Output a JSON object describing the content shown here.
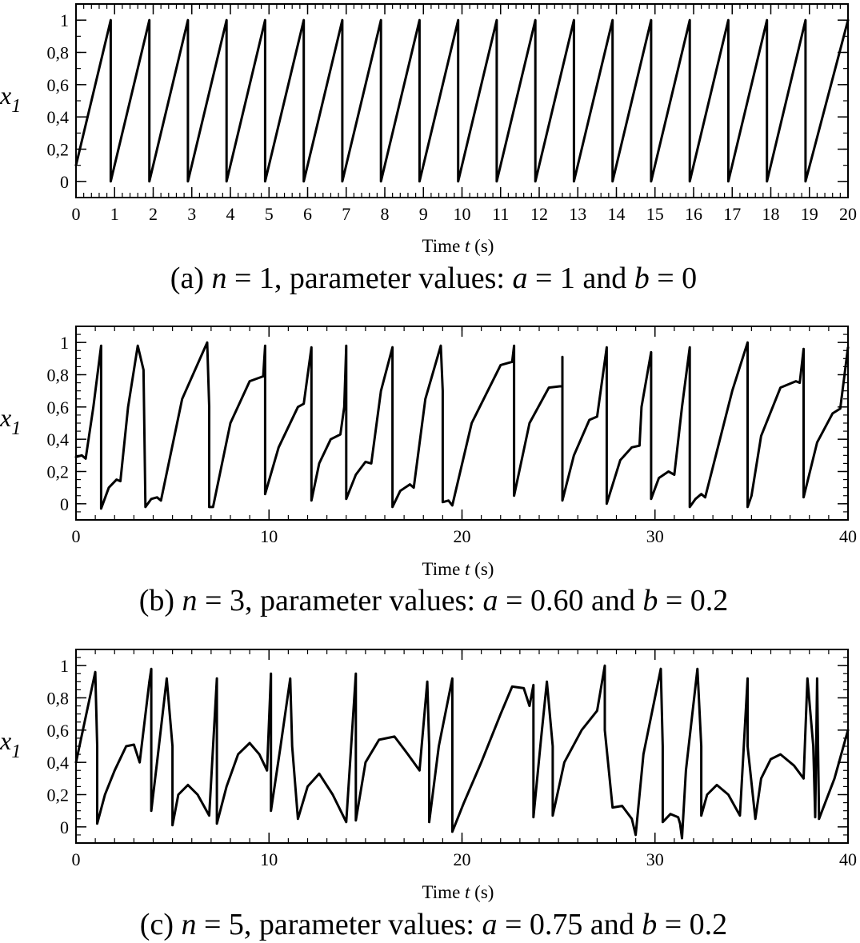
{
  "chart_data": [
    {
      "type": "line",
      "panel": "a",
      "caption": {
        "prefix": "(a) ",
        "n_var": "n",
        "n_eq": " = 1, parameter values: ",
        "a_var": "a",
        "a_eq": " = 1 and ",
        "b_var": "b",
        "b_eq": " = 0"
      },
      "xlabel": {
        "word": "Time ",
        "var": "t",
        "unit": "   (s)"
      },
      "ylabel": {
        "main": "x",
        "sub": "1"
      },
      "xlim": [
        0,
        20
      ],
      "ylim": [
        -0.1,
        1.1
      ],
      "xticks": [
        0,
        1,
        2,
        3,
        4,
        5,
        6,
        7,
        8,
        9,
        10,
        11,
        12,
        13,
        14,
        15,
        16,
        17,
        18,
        19,
        20
      ],
      "xtick_labels": [
        "0",
        "1",
        "2",
        "3",
        "4",
        "5",
        "6",
        "7",
        "8",
        "9",
        "10",
        "11",
        "12",
        "13",
        "14",
        "15",
        "16",
        "17",
        "18",
        "19",
        "20"
      ],
      "xminor_step": 0.2,
      "yticks": [
        0,
        0.2,
        0.4,
        0.6,
        0.8,
        1
      ],
      "ytick_labels": [
        "0",
        "0,2",
        "0,4",
        "0,6",
        "0,8",
        "1"
      ],
      "yminor_step": 0.1,
      "grid": false,
      "series": [
        {
          "x": [
            0,
            0.9,
            0.9,
            1.9,
            1.9,
            2.9,
            2.9,
            3.9,
            3.9,
            4.9,
            4.9,
            5.9,
            5.9,
            6.9,
            6.9,
            7.9,
            7.9,
            8.9,
            8.9,
            9.9,
            9.9,
            10.9,
            10.9,
            11.9,
            11.9,
            12.9,
            12.9,
            13.9,
            13.9,
            14.9,
            14.9,
            15.9,
            15.9,
            16.9,
            16.9,
            17.9,
            17.9,
            18.9,
            18.9,
            20
          ],
          "y": [
            0.1,
            1.0,
            0.0,
            1.0,
            0.0,
            1.0,
            0.0,
            1.0,
            0.0,
            1.0,
            0.0,
            1.0,
            0.0,
            1.0,
            0.0,
            1.0,
            0.0,
            1.0,
            0.0,
            1.0,
            0.0,
            1.0,
            0.0,
            1.0,
            0.0,
            1.0,
            0.0,
            1.0,
            0.0,
            1.0,
            0.0,
            1.0,
            0.0,
            1.0,
            0.0,
            1.0,
            0.0,
            1.0,
            0.0,
            1.0
          ]
        }
      ]
    },
    {
      "type": "line",
      "panel": "b",
      "caption": {
        "prefix": "(b) ",
        "n_var": "n",
        "n_eq": " = 3, parameter values: ",
        "a_var": "a",
        "a_eq": " = 0.60 and ",
        "b_var": "b",
        "b_eq": " = 0.2"
      },
      "xlabel": {
        "word": "Time ",
        "var": "t",
        "unit": "   (s)"
      },
      "ylabel": {
        "main": "x",
        "sub": "1"
      },
      "xlim": [
        0,
        40
      ],
      "ylim": [
        -0.1,
        1.1
      ],
      "xticks": [
        0,
        10,
        20,
        30,
        40
      ],
      "xtick_labels": [
        "0",
        "10",
        "20",
        "30",
        "40"
      ],
      "xminor_step": 1,
      "yticks": [
        0,
        0.2,
        0.4,
        0.6,
        0.8,
        1
      ],
      "ytick_labels": [
        "0",
        "0,2",
        "0,4",
        "0,6",
        "0,8",
        "1"
      ],
      "yminor_step": 0.05,
      "grid": false,
      "series": [
        {
          "x": [
            0,
            0.3,
            0.5,
            0.9,
            1.3,
            1.3,
            1.7,
            2.1,
            2.3,
            2.7,
            3.2,
            3.5,
            3.6,
            3.6,
            3.9,
            4.2,
            4.4,
            5.5,
            6.8,
            6.9,
            6.9,
            7.1,
            8.0,
            9.0,
            9.7,
            9.8,
            9.8,
            10.5,
            11.5,
            11.8,
            12.2,
            12.2,
            12.6,
            13.2,
            13.7,
            13.9,
            14.0,
            14.0,
            14.5,
            15.0,
            15.3,
            15.8,
            16.4,
            16.4,
            16.8,
            17.3,
            17.5,
            18.1,
            18.9,
            19.0,
            19.0,
            19.3,
            19.5,
            20.5,
            22.0,
            22.6,
            22.7,
            22.7,
            23.5,
            24.5,
            25.2,
            25.2,
            25.2,
            25.8,
            26.6,
            27.0,
            27.5,
            27.5,
            28.2,
            28.8,
            29.2,
            29.3,
            29.8,
            29.8,
            30.2,
            30.7,
            31.0,
            31.4,
            31.8,
            31.8,
            32.1,
            32.4,
            32.6,
            34.0,
            34.8,
            34.8,
            35.0,
            35.5,
            36.5,
            37.3,
            37.5,
            37.7,
            37.7,
            38.4,
            39.2,
            39.6,
            40
          ],
          "y": [
            0.29,
            0.3,
            0.28,
            0.6,
            0.98,
            -0.03,
            0.1,
            0.15,
            0.14,
            0.6,
            0.98,
            0.83,
            -0.02,
            -0.02,
            0.03,
            0.04,
            0.02,
            0.65,
            1.0,
            0.6,
            -0.02,
            -0.02,
            0.5,
            0.76,
            0.79,
            0.98,
            0.06,
            0.35,
            0.6,
            0.62,
            0.97,
            0.02,
            0.25,
            0.4,
            0.43,
            0.6,
            0.98,
            0.03,
            0.18,
            0.26,
            0.25,
            0.7,
            0.97,
            -0.02,
            0.08,
            0.12,
            0.1,
            0.65,
            0.98,
            0.7,
            0.01,
            0.02,
            -0.01,
            0.5,
            0.86,
            0.88,
            0.98,
            0.05,
            0.5,
            0.72,
            0.73,
            0.91,
            0.02,
            0.3,
            0.52,
            0.54,
            0.97,
            0.0,
            0.27,
            0.35,
            0.36,
            0.6,
            0.94,
            0.03,
            0.16,
            0.2,
            0.18,
            0.6,
            0.97,
            -0.02,
            0.03,
            0.06,
            0.04,
            0.7,
            1.0,
            -0.02,
            0.05,
            0.42,
            0.72,
            0.76,
            0.75,
            0.96,
            0.04,
            0.38,
            0.56,
            0.59,
            0.97
          ]
        }
      ]
    },
    {
      "type": "line",
      "panel": "c",
      "caption": {
        "prefix": "(c) ",
        "n_var": "n",
        "n_eq": " = 5, parameter values: ",
        "a_var": "a",
        "a_eq": " = 0.75 and ",
        "b_var": "b",
        "b_eq": " = 0.2"
      },
      "xlabel": {
        "word": "Time ",
        "var": "t",
        "unit": "   (s)"
      },
      "ylabel": {
        "main": "x",
        "sub": "1"
      },
      "xlim": [
        0,
        40
      ],
      "ylim": [
        -0.1,
        1.1
      ],
      "xticks": [
        0,
        10,
        20,
        30,
        40
      ],
      "xtick_labels": [
        "0",
        "10",
        "20",
        "30",
        "40"
      ],
      "xminor_step": 1,
      "yticks": [
        0,
        0.2,
        0.4,
        0.6,
        0.8,
        1
      ],
      "ytick_labels": [
        "0",
        "0,2",
        "0,4",
        "0,6",
        "0,8",
        "1"
      ],
      "yminor_step": 0.05,
      "grid": false,
      "series": [
        {
          "x": [
            0,
            1.0,
            1.1,
            1.1,
            1.5,
            2.0,
            2.6,
            3.0,
            3.3,
            3.8,
            3.9,
            3.9,
            4.2,
            4.7,
            5.0,
            5.0,
            5.3,
            5.8,
            6.3,
            6.9,
            7.3,
            7.3,
            7.8,
            8.4,
            9.0,
            9.5,
            9.9,
            10.1,
            10.1,
            10.6,
            11.1,
            11.2,
            11.5,
            12.0,
            12.6,
            13.3,
            14.0,
            14.5,
            14.5,
            15.0,
            15.7,
            16.5,
            17.2,
            17.8,
            18.2,
            18.3,
            18.3,
            18.8,
            19.5,
            19.5,
            20.1,
            21.0,
            22.0,
            22.6,
            23.2,
            23.5,
            23.7,
            23.7,
            24.1,
            24.4,
            24.7,
            24.7,
            25.3,
            26.2,
            27.0,
            27.4,
            27.4,
            27.8,
            28.3,
            28.8,
            29.0,
            29.4,
            30.3,
            30.4,
            30.4,
            30.8,
            31.2,
            31.3,
            31.4,
            31.6,
            32.2,
            32.4,
            32.4,
            32.7,
            33.2,
            33.8,
            34.4,
            34.8,
            34.8,
            35.2,
            35.5,
            36.0,
            36.5,
            37.2,
            37.7,
            37.9,
            38.2,
            38.3,
            38.4,
            38.5,
            39.3,
            40
          ],
          "y": [
            0.4,
            0.96,
            0.5,
            0.02,
            0.2,
            0.35,
            0.5,
            0.51,
            0.4,
            0.9,
            0.98,
            0.1,
            0.4,
            0.92,
            0.5,
            0.01,
            0.2,
            0.26,
            0.2,
            0.07,
            0.92,
            0.02,
            0.25,
            0.45,
            0.52,
            0.45,
            0.35,
            0.95,
            0.1,
            0.5,
            0.92,
            0.5,
            0.05,
            0.25,
            0.33,
            0.2,
            0.03,
            0.95,
            0.04,
            0.4,
            0.54,
            0.56,
            0.45,
            0.35,
            0.9,
            0.5,
            0.03,
            0.5,
            0.92,
            -0.03,
            0.15,
            0.4,
            0.7,
            0.87,
            0.86,
            0.75,
            0.88,
            0.06,
            0.55,
            0.9,
            0.5,
            0.07,
            0.4,
            0.6,
            0.72,
            1.0,
            0.6,
            0.12,
            0.13,
            0.05,
            -0.05,
            0.45,
            0.98,
            0.5,
            0.03,
            0.08,
            0.06,
            0.02,
            -0.07,
            0.35,
            0.98,
            0.5,
            0.07,
            0.2,
            0.26,
            0.2,
            0.07,
            0.92,
            0.5,
            0.05,
            0.3,
            0.42,
            0.45,
            0.38,
            0.3,
            0.92,
            0.5,
            0.06,
            0.92,
            0.05,
            0.3,
            0.6
          ]
        }
      ]
    }
  ]
}
